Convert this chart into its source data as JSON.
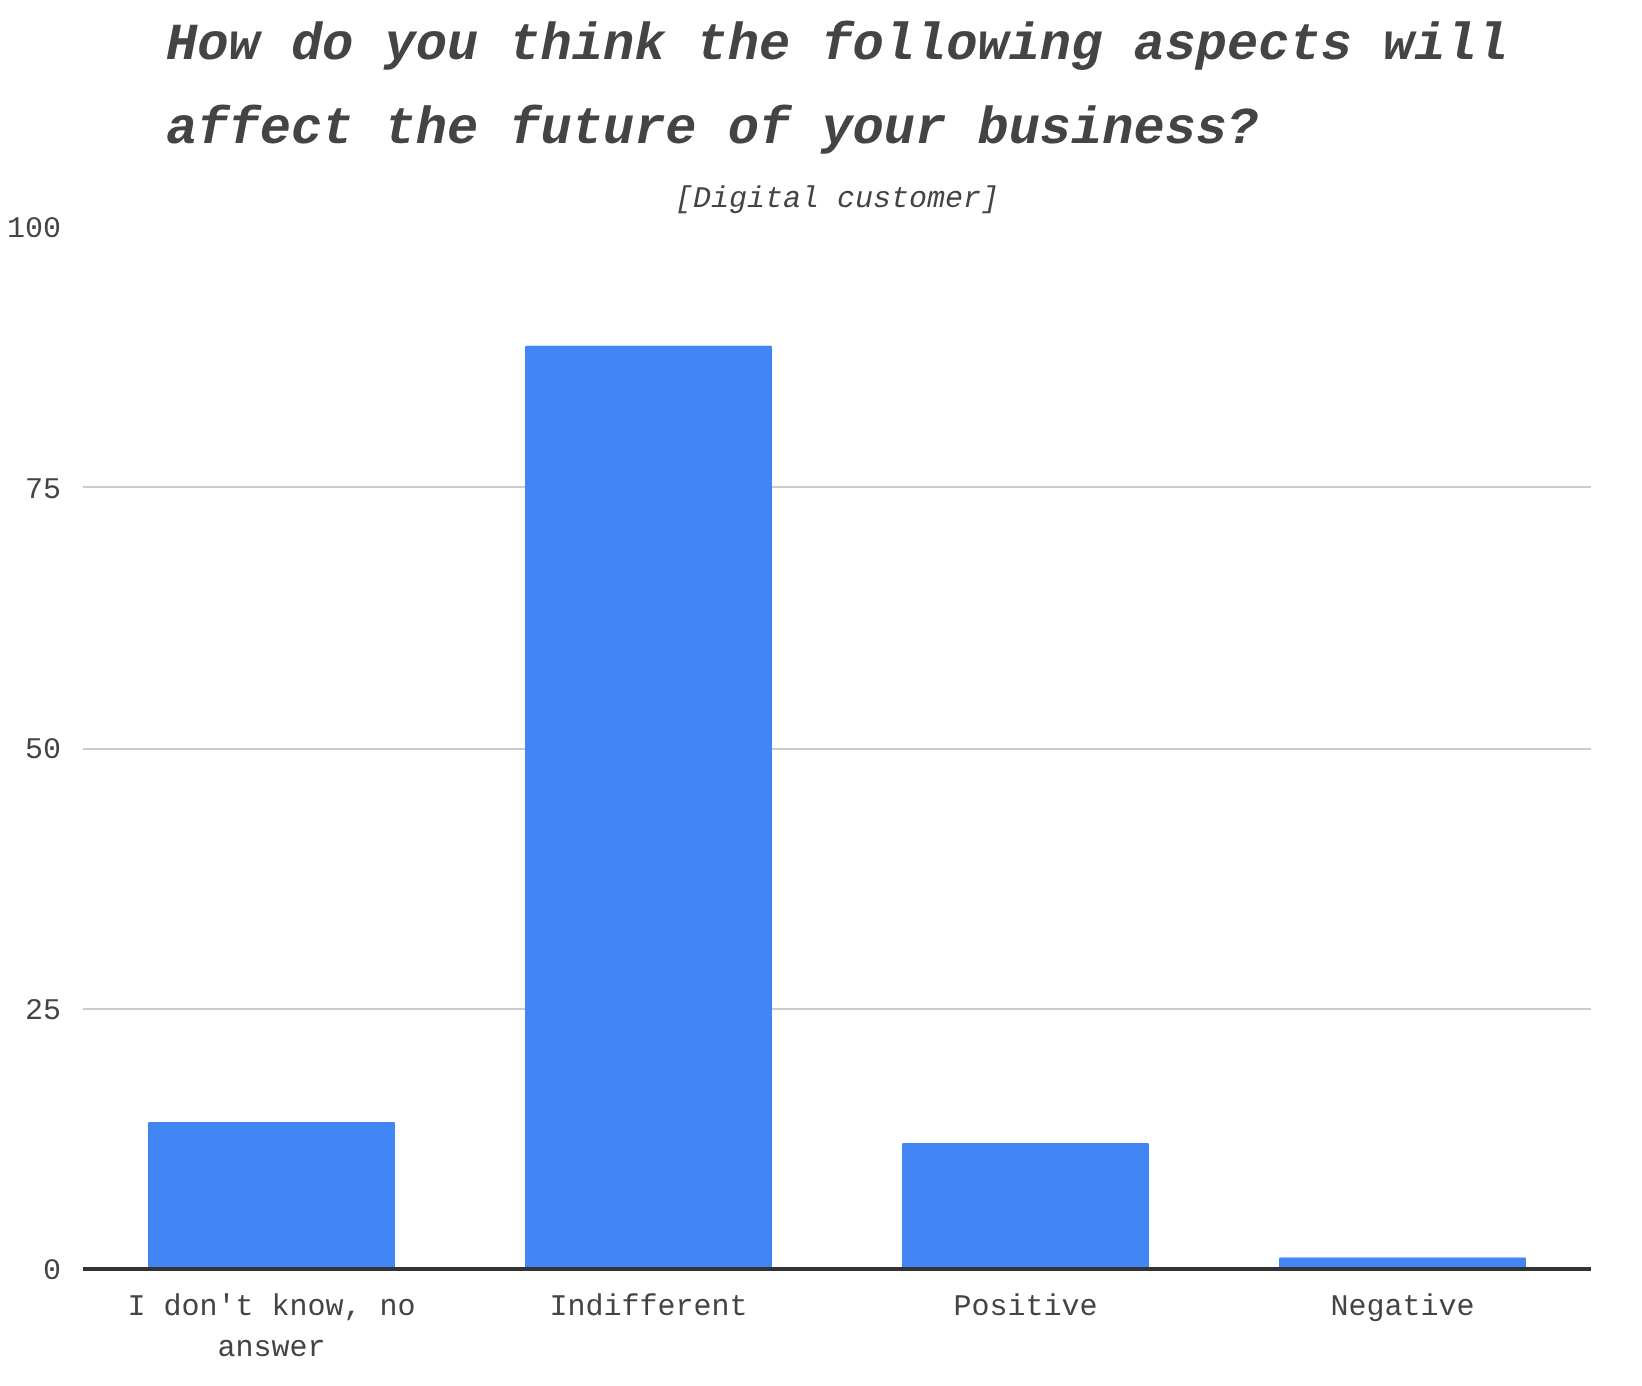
{
  "chart_data": {
    "type": "bar",
    "title": "How do you think the following aspects will affect the future of your business?",
    "subtitle": "[Digital customer]",
    "categories": [
      "I don't know, no answer",
      "Indifferent",
      "Positive",
      "Negative"
    ],
    "values": [
      14,
      88.5,
      12,
      1
    ],
    "color": "#4285f4",
    "ylim": [
      0,
      100
    ],
    "yticks": [
      0,
      25,
      50,
      75,
      100
    ],
    "grid": "y"
  }
}
